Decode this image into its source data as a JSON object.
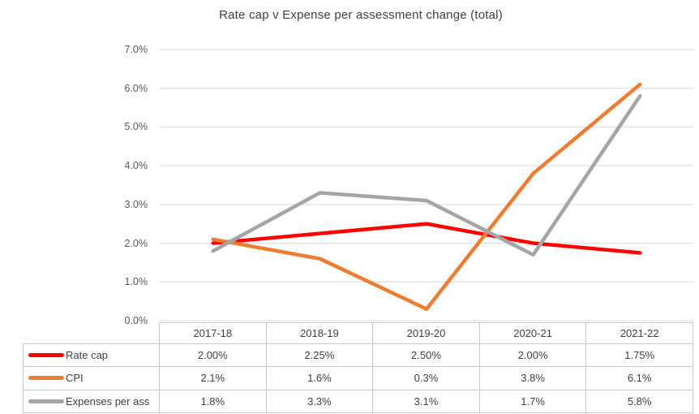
{
  "title": "Rate cap v Expense per assessment change (total)",
  "chart_data": {
    "type": "line",
    "title": "Rate cap v Expense per assessment change (total)",
    "xlabel": "",
    "ylabel": "",
    "categories": [
      "2017-18",
      "2018-19",
      "2019-20",
      "2020-21",
      "2021-22"
    ],
    "series": [
      {
        "name": "Rate cap",
        "color": "#FF0000",
        "values": [
          2.0,
          2.25,
          2.5,
          2.0,
          1.75
        ]
      },
      {
        "name": "CPI",
        "color": "#ED7D31",
        "values": [
          2.1,
          1.6,
          0.3,
          3.8,
          6.1
        ]
      },
      {
        "name": "Expenses per ass",
        "color": "#A5A5A5",
        "values": [
          1.8,
          3.3,
          3.1,
          1.7,
          5.8
        ]
      }
    ],
    "ylim": [
      0,
      7
    ],
    "ytick_labels": [
      "0.0%",
      "1.0%",
      "2.0%",
      "3.0%",
      "4.0%",
      "5.0%",
      "6.0%",
      "7.0%"
    ],
    "grid": true,
    "legend_position": "data-table-left-column"
  },
  "data_table": {
    "columns": [
      "2017-18",
      "2018-19",
      "2019-20",
      "2020-21",
      "2021-22"
    ],
    "rows": [
      {
        "label": "Rate cap",
        "key_color": "#FF0000",
        "cells": [
          "2.00%",
          "2.25%",
          "2.50%",
          "2.00%",
          "1.75%"
        ]
      },
      {
        "label": "CPI",
        "key_color": "#ED7D31",
        "cells": [
          "2.1%",
          "1.6%",
          "0.3%",
          "3.8%",
          "6.1%"
        ]
      },
      {
        "label": "Expenses per ass",
        "key_color": "#A5A5A5",
        "cells": [
          "1.8%",
          "3.3%",
          "3.1%",
          "1.7%",
          "5.8%"
        ]
      }
    ]
  },
  "colors": {
    "rate_cap": "#FF0000",
    "cpi": "#ED7D31",
    "expenses": "#A5A5A5",
    "gridline": "#D9D9D9",
    "table_border": "#C8C8C8",
    "title_text": "#404040",
    "axis_text": "#595959"
  }
}
